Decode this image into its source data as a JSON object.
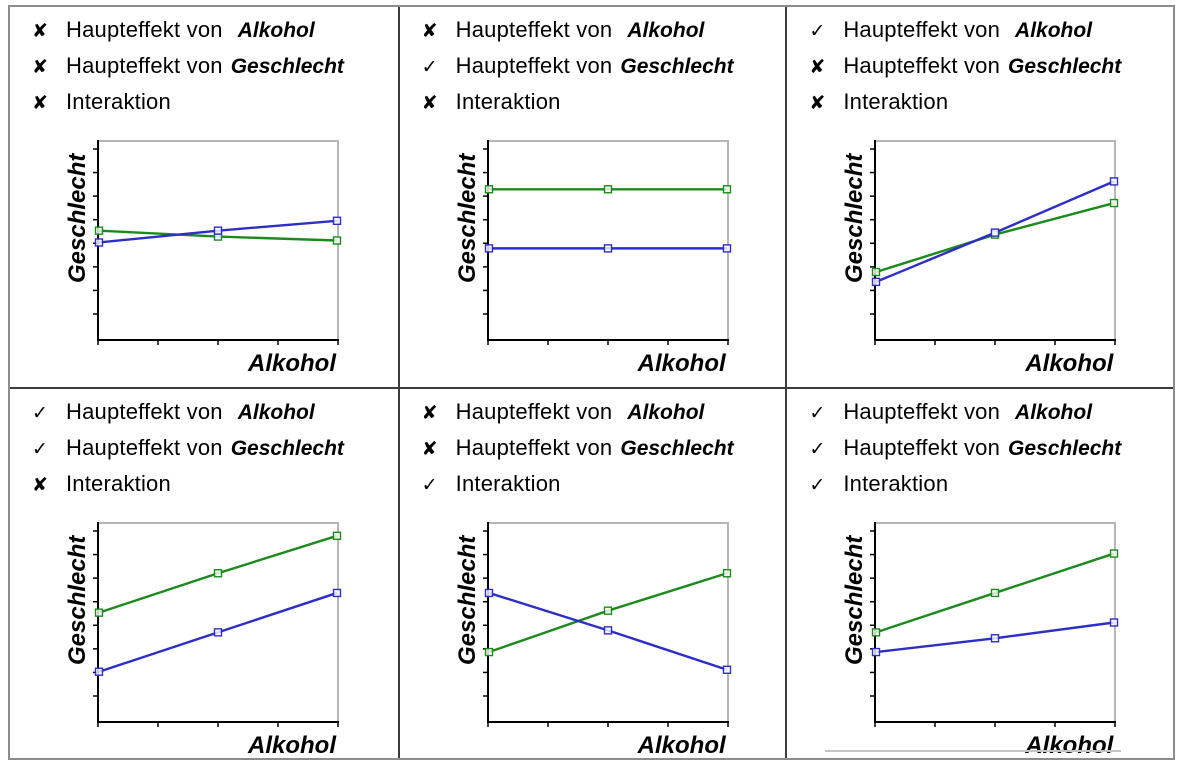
{
  "colors": {
    "green": "#1c8a1c",
    "blue": "#2d2dc8",
    "axis": "#000000",
    "frame": "#b6b6b6",
    "grid_divider": "#3c3c3c",
    "outer_border": "#8c8c8c",
    "footer_line": "#c4c4c4"
  },
  "labels": {
    "ylabel": "Geschlecht",
    "xlabel": "Alkohol"
  },
  "panels": [
    {
      "rows": [
        {
          "mark": "✘",
          "label": "Haupteffekt von",
          "factor": "Alkohol"
        },
        {
          "mark": "✘",
          "label": "Haupteffekt von",
          "factor": "Geschlecht"
        },
        {
          "mark": "✘",
          "label": "Interaktion",
          "factor": ""
        }
      ]
    },
    {
      "rows": [
        {
          "mark": "✘",
          "label": "Haupteffekt von",
          "factor": "Alkohol"
        },
        {
          "mark": "✓",
          "label": "Haupteffekt von",
          "factor": "Geschlecht"
        },
        {
          "mark": "✘",
          "label": "Interaktion",
          "factor": ""
        }
      ]
    },
    {
      "rows": [
        {
          "mark": "✓",
          "label": "Haupteffekt von",
          "factor": "Alkohol"
        },
        {
          "mark": "✘",
          "label": "Haupteffekt von",
          "factor": "Geschlecht"
        },
        {
          "mark": "✘",
          "label": "Interaktion",
          "factor": ""
        }
      ]
    },
    {
      "rows": [
        {
          "mark": "✓",
          "label": "Haupteffekt von",
          "factor": "Alkohol"
        },
        {
          "mark": "✓",
          "label": "Haupteffekt von",
          "factor": "Geschlecht"
        },
        {
          "mark": "✘",
          "label": "Interaktion",
          "factor": ""
        }
      ]
    },
    {
      "rows": [
        {
          "mark": "✘",
          "label": "Haupteffekt von",
          "factor": "Alkohol"
        },
        {
          "mark": "✘",
          "label": "Haupteffekt von",
          "factor": "Geschlecht"
        },
        {
          "mark": "✓",
          "label": "Interaktion",
          "factor": ""
        }
      ]
    },
    {
      "rows": [
        {
          "mark": "✓",
          "label": "Haupteffekt von",
          "factor": "Alkohol"
        },
        {
          "mark": "✓",
          "label": "Haupteffekt von",
          "factor": "Geschlecht"
        },
        {
          "mark": "✓",
          "label": "Interaktion",
          "factor": ""
        }
      ]
    }
  ],
  "chart_data": [
    {
      "type": "line",
      "xlabel": "Alkohol",
      "ylabel": "Geschlecht",
      "x": [
        1,
        2,
        3
      ],
      "x_ticks": 5,
      "y_ticks": 8,
      "ylim": [
        0,
        1
      ],
      "grid": false,
      "legend": "none",
      "series": [
        {
          "name": "green",
          "color": "#1c8a1c",
          "values": [
            0.55,
            0.52,
            0.5
          ]
        },
        {
          "name": "blue",
          "color": "#2d2dc8",
          "values": [
            0.49,
            0.55,
            0.6
          ]
        }
      ]
    },
    {
      "type": "line",
      "xlabel": "Alkohol",
      "ylabel": "Geschlecht",
      "x": [
        1,
        2,
        3
      ],
      "x_ticks": 5,
      "y_ticks": 8,
      "ylim": [
        0,
        1
      ],
      "grid": false,
      "legend": "none",
      "series": [
        {
          "name": "green",
          "color": "#1c8a1c",
          "values": [
            0.76,
            0.76,
            0.76
          ]
        },
        {
          "name": "blue",
          "color": "#2d2dc8",
          "values": [
            0.46,
            0.46,
            0.46
          ]
        }
      ]
    },
    {
      "type": "line",
      "xlabel": "Alkohol",
      "ylabel": "Geschlecht",
      "x": [
        1,
        2,
        3
      ],
      "x_ticks": 5,
      "y_ticks": 8,
      "ylim": [
        0,
        1
      ],
      "grid": false,
      "legend": "none",
      "series": [
        {
          "name": "green",
          "color": "#1c8a1c",
          "values": [
            0.34,
            0.53,
            0.69
          ]
        },
        {
          "name": "blue",
          "color": "#2d2dc8",
          "values": [
            0.29,
            0.54,
            0.8
          ]
        }
      ]
    },
    {
      "type": "line",
      "xlabel": "Alkohol",
      "ylabel": "Geschlecht",
      "x": [
        1,
        2,
        3
      ],
      "x_ticks": 5,
      "y_ticks": 8,
      "ylim": [
        0,
        1
      ],
      "grid": false,
      "legend": "none",
      "series": [
        {
          "name": "green",
          "color": "#1c8a1c",
          "values": [
            0.55,
            0.75,
            0.94
          ]
        },
        {
          "name": "blue",
          "color": "#2d2dc8",
          "values": [
            0.25,
            0.45,
            0.65
          ]
        }
      ]
    },
    {
      "type": "line",
      "xlabel": "Alkohol",
      "ylabel": "Geschlecht",
      "x": [
        1,
        2,
        3
      ],
      "x_ticks": 5,
      "y_ticks": 8,
      "ylim": [
        0,
        1
      ],
      "grid": false,
      "legend": "none",
      "series": [
        {
          "name": "green",
          "color": "#1c8a1c",
          "values": [
            0.35,
            0.56,
            0.75
          ]
        },
        {
          "name": "blue",
          "color": "#2d2dc8",
          "values": [
            0.65,
            0.46,
            0.26
          ]
        }
      ]
    },
    {
      "type": "line",
      "xlabel": "Alkohol",
      "ylabel": "Geschlecht",
      "x": [
        1,
        2,
        3
      ],
      "x_ticks": 5,
      "y_ticks": 8,
      "ylim": [
        0,
        1
      ],
      "grid": false,
      "legend": "none",
      "series": [
        {
          "name": "green",
          "color": "#1c8a1c",
          "values": [
            0.45,
            0.65,
            0.85
          ]
        },
        {
          "name": "blue",
          "color": "#2d2dc8",
          "values": [
            0.35,
            0.42,
            0.5
          ]
        }
      ]
    }
  ]
}
